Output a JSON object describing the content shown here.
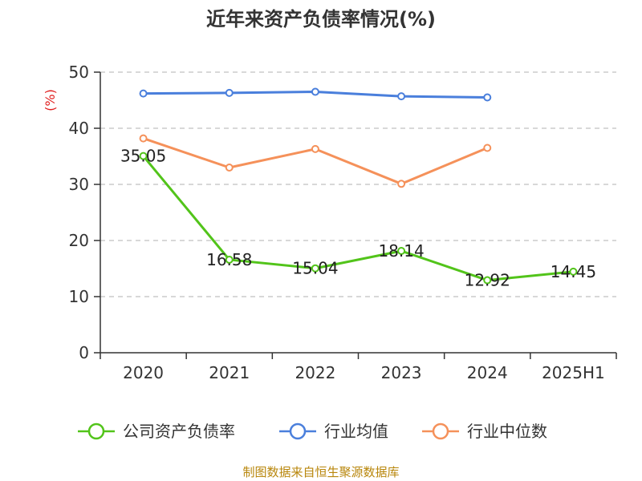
{
  "title": "近年来资产负债率情况(%)",
  "source": "制图数据来自恒生聚源数据库",
  "chart_data": {
    "type": "line",
    "title": "近年来资产负债率情况(%)",
    "ylabel": "(%)",
    "xlabel": "",
    "categories": [
      "2020",
      "2021",
      "2022",
      "2023",
      "2024",
      "2025H1"
    ],
    "ylim": [
      0,
      50
    ],
    "yticks": [
      0,
      10,
      20,
      30,
      40,
      50
    ],
    "grid": true,
    "legend_position": "bottom",
    "series": [
      {
        "name": "公司资产负债率",
        "color": "#52c41a",
        "values": [
          35.05,
          16.58,
          15.04,
          18.14,
          12.92,
          14.45
        ],
        "labels": [
          "35.05",
          "16.58",
          "15.04",
          "18.14",
          "12.92",
          "14.45"
        ]
      },
      {
        "name": "行业均值",
        "color": "#4a7fdc",
        "values": [
          46.2,
          46.3,
          46.5,
          45.7,
          45.5,
          null
        ]
      },
      {
        "name": "行业中位数",
        "color": "#f5915a",
        "values": [
          38.2,
          33.0,
          36.3,
          30.1,
          36.5,
          null
        ]
      }
    ]
  }
}
